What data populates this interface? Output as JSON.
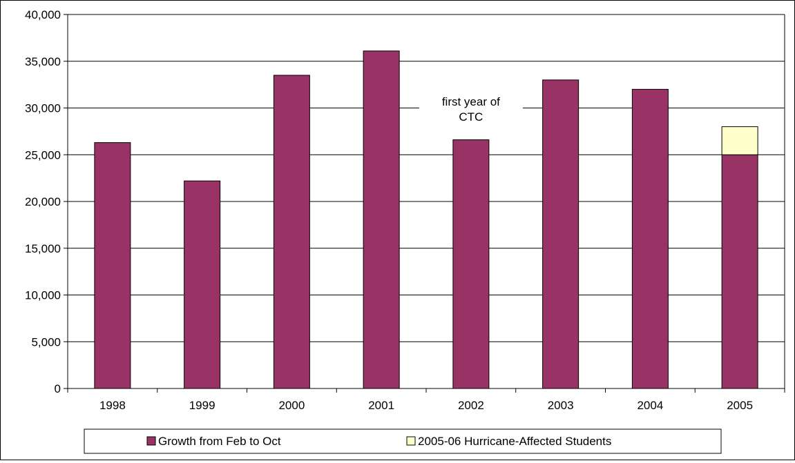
{
  "chart_data": {
    "type": "bar",
    "stacked": true,
    "title": "",
    "xlabel": "",
    "ylabel": "",
    "categories": [
      "1998",
      "1999",
      "2000",
      "2001",
      "2002",
      "2003",
      "2004",
      "2005"
    ],
    "series": [
      {
        "name": "Growth from Feb to Oct",
        "color": "#993366",
        "values": [
          26300,
          22200,
          33500,
          36100,
          26600,
          33000,
          32000,
          25000
        ]
      },
      {
        "name": "2005-06 Hurricane-Affected Students",
        "color": "#FFFFCC",
        "values": [
          0,
          0,
          0,
          0,
          0,
          0,
          0,
          3000
        ]
      }
    ],
    "ylim": [
      0,
      40000
    ],
    "ytick_step": 5000,
    "ytick_labels": [
      "0",
      "5,000",
      "10,000",
      "15,000",
      "20,000",
      "25,000",
      "30,000",
      "35,000",
      "40,000"
    ],
    "grid": true,
    "legend_position": "bottom",
    "annotations": [
      {
        "lines": [
          "first year of",
          "CTC"
        ],
        "category": "2002"
      }
    ]
  }
}
